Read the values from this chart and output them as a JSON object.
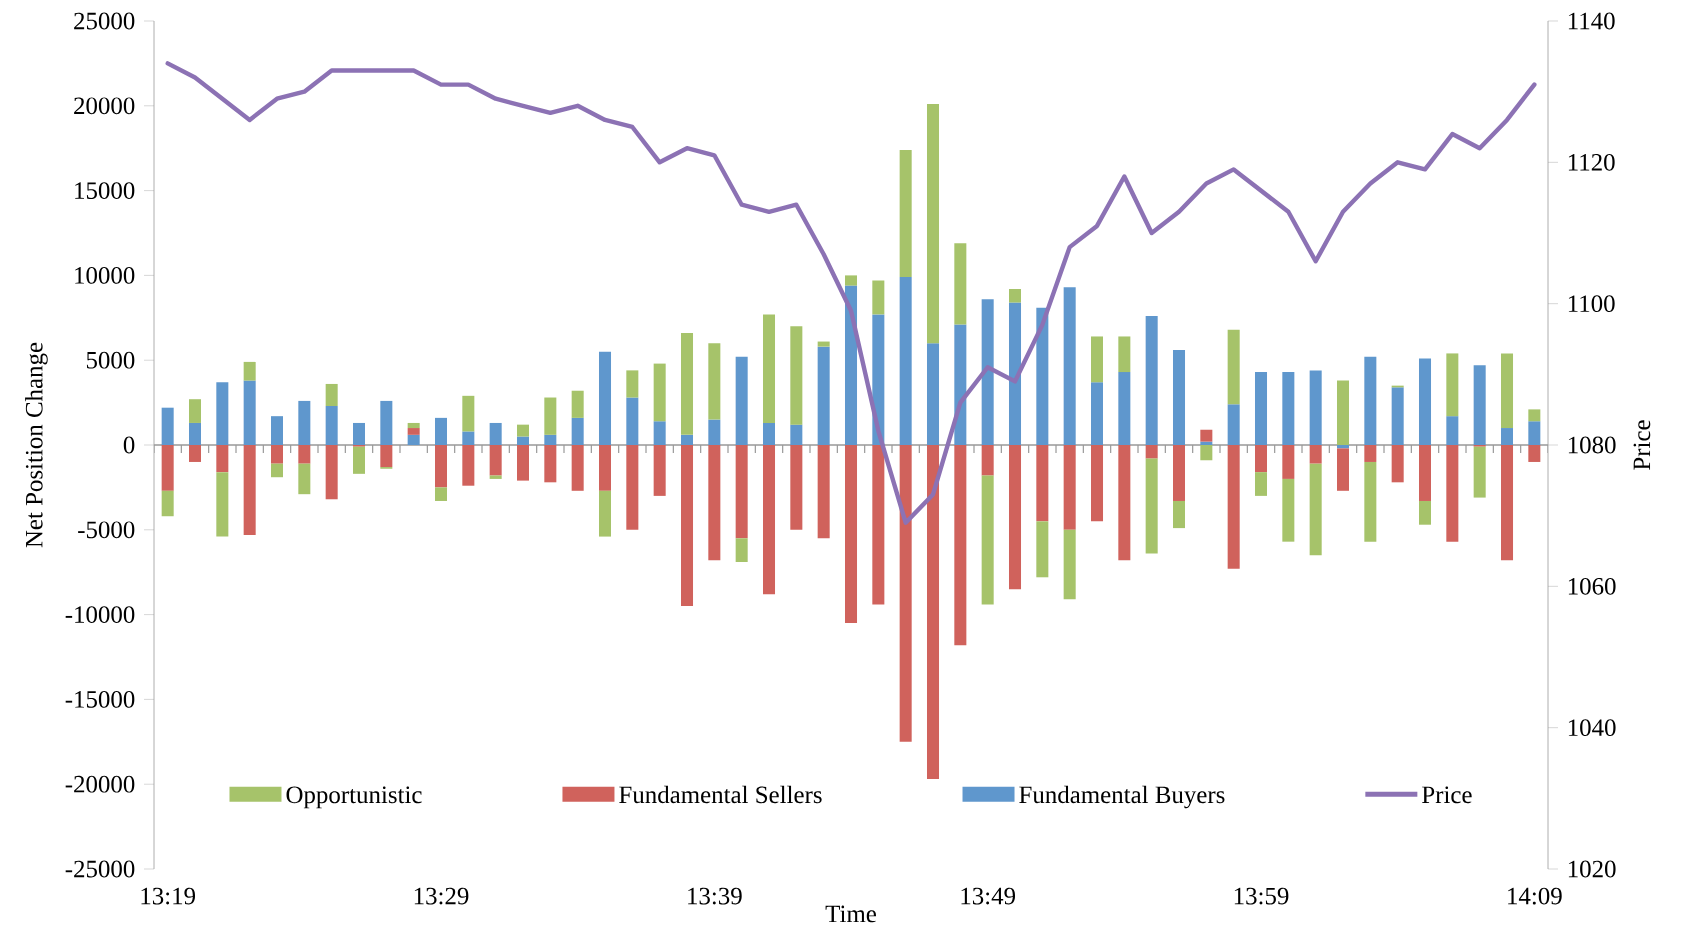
{
  "chart_data": {
    "type": "bar",
    "stacked": true,
    "categories": [
      "13:19",
      null,
      null,
      null,
      null,
      null,
      null,
      null,
      null,
      null,
      "13:29",
      null,
      null,
      null,
      null,
      null,
      null,
      null,
      null,
      null,
      "13:39",
      null,
      null,
      null,
      null,
      null,
      null,
      null,
      null,
      null,
      "13:49",
      null,
      null,
      null,
      null,
      null,
      null,
      null,
      null,
      null,
      "13:59",
      null,
      null,
      null,
      null,
      null,
      null,
      null,
      null,
      null,
      "14:09"
    ],
    "xlabel": "Time",
    "ylabel": "Net Position Change",
    "y2label": "Price",
    "ylim": [
      -25000,
      25000
    ],
    "yticks": [
      -25000,
      -20000,
      -15000,
      -10000,
      -5000,
      0,
      5000,
      10000,
      15000,
      20000,
      25000
    ],
    "y2lim": [
      1020,
      1140
    ],
    "y2ticks": [
      1020,
      1040,
      1060,
      1080,
      1100,
      1120,
      1140
    ],
    "legend": "bottom",
    "series": [
      {
        "name": "Fundamental Buyers",
        "color": "#5f97cd",
        "values": [
          2200,
          1300,
          3700,
          3800,
          1700,
          2600,
          2300,
          1300,
          2600,
          600,
          1600,
          800,
          1300,
          500,
          600,
          1600,
          5500,
          2800,
          1400,
          600,
          1500,
          5200,
          1300,
          1200,
          5800,
          9400,
          7700,
          9900,
          6000,
          7100,
          8600,
          8400,
          8100,
          9300,
          3700,
          4300,
          7600,
          5600,
          200,
          2400,
          4300,
          4300,
          4400,
          -200,
          5200,
          3400,
          5100,
          1700,
          4700,
          1000,
          1400
        ]
      },
      {
        "name": "Fundamental Sellers",
        "color": "#d0625c",
        "values": [
          -2700,
          -1000,
          -1600,
          -5300,
          -1100,
          -1100,
          -3200,
          -100,
          -1300,
          400,
          -2500,
          -2400,
          -1800,
          -2100,
          -2200,
          -2700,
          -2700,
          -5000,
          -3000,
          -9500,
          -6800,
          -5500,
          -8800,
          -5000,
          -5500,
          -10500,
          -9400,
          -17500,
          -19700,
          -11800,
          -1800,
          -8500,
          -4500,
          -5000,
          -4500,
          -6800,
          -800,
          -3300,
          700,
          -7300,
          -1600,
          -2000,
          -1100,
          -2500,
          -1000,
          -2200,
          -3300,
          -5700,
          -100,
          -6800,
          -1000
        ]
      },
      {
        "name": "Opportunistic",
        "color": "#a6c36a",
        "values": [
          -1500,
          1400,
          -3800,
          1100,
          -800,
          -1800,
          1300,
          -1600,
          -100,
          300,
          -800,
          2100,
          -200,
          700,
          2200,
          1600,
          -2700,
          1600,
          3400,
          6000,
          4500,
          -1400,
          6400,
          5800,
          300,
          600,
          2000,
          7500,
          14100,
          4800,
          -7600,
          800,
          -3300,
          -4100,
          2700,
          2100,
          -5600,
          -1600,
          -900,
          4400,
          -1400,
          -3700,
          -5400,
          3800,
          -4700,
          100,
          -1400,
          3700,
          -3000,
          4400,
          700
        ]
      },
      {
        "name": "Price",
        "type": "line",
        "axis": "y2",
        "color": "#8c72b4",
        "values": [
          1134,
          1132,
          1129,
          1126,
          1129,
          1130,
          1133,
          1133,
          1133,
          1133,
          1131,
          1131,
          1129,
          1128,
          1127,
          1128,
          1126,
          1125,
          1120,
          1122,
          1121,
          1114,
          1113,
          1114,
          1107,
          1099,
          1082,
          1069,
          1073,
          1086,
          1091,
          1089,
          1097,
          1108,
          1111,
          1118,
          1110,
          1113,
          1117,
          1119,
          1116,
          1113,
          1106,
          1113,
          1117,
          1120,
          1119,
          1124,
          1122,
          1126,
          1131
        ]
      }
    ]
  }
}
